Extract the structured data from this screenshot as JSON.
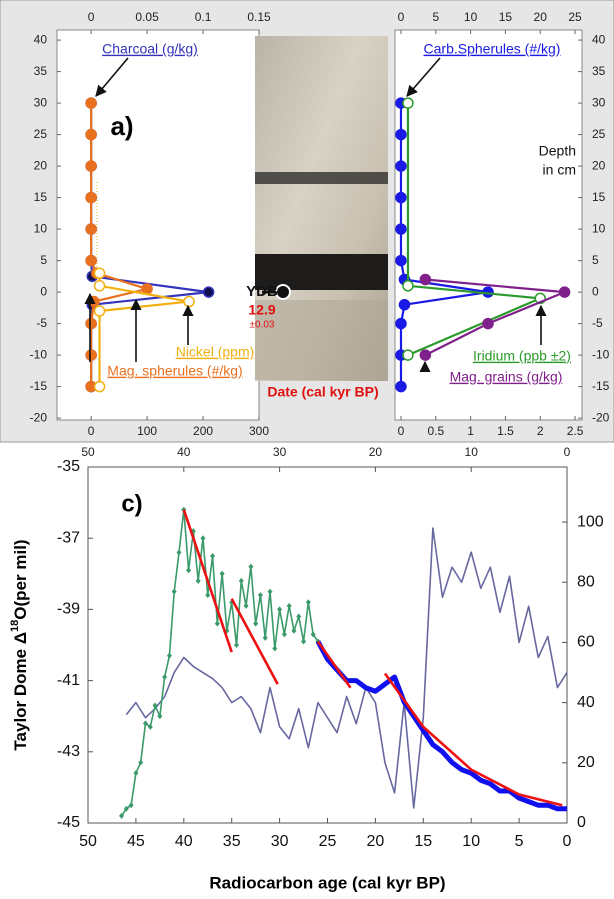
{
  "chart_data": [
    {
      "type": "profile",
      "panel_label": "a)",
      "ytick_side": "left",
      "ylim": [
        -20.3,
        41.6
      ],
      "yticks": [
        -20,
        -15,
        -10,
        -5,
        0,
        5,
        10,
        15,
        20,
        25,
        30,
        35,
        40
      ],
      "xlim": [
        -61,
        300
      ],
      "xticks": [
        0,
        100,
        200,
        300
      ],
      "x2lim": [
        -0.0305,
        0.15
      ],
      "x2ticks": [
        0,
        0.05,
        0.1,
        0.15
      ],
      "annotations": [
        "YDB",
        "12.9",
        "±0.03",
        "Date (cal kyr BP)"
      ],
      "series": [
        {
          "name": "Charcoal (g/kg)",
          "color": "#3333bb",
          "marker": "#101050",
          "axis": "x2",
          "depth": [
            30,
            25,
            20,
            15,
            10,
            5,
            2.5,
            0,
            -2,
            -5,
            -10,
            -15
          ],
          "values": [
            0,
            0,
            0,
            0,
            0,
            0,
            0.001,
            0.105,
            0.001,
            0,
            0,
            0
          ]
        },
        {
          "name": "Mag. spherules (#/kg)",
          "color": "#e8701e",
          "marker": "#e8701e",
          "axis": "x",
          "depth": [
            30,
            25,
            20,
            15,
            10,
            5,
            3,
            0.5,
            -1.5,
            -5,
            -10,
            -15
          ],
          "values": [
            0,
            0,
            0,
            0,
            0,
            0,
            10,
            100,
            5,
            0,
            0,
            0
          ]
        },
        {
          "name": "Nickel (ppm)",
          "color": "#f2b010",
          "marker": "#ffffff",
          "axis": "x",
          "depth": [
            3,
            1,
            -1.5,
            -3,
            -15
          ],
          "values": [
            15,
            15,
            175,
            15,
            15
          ]
        }
      ]
    },
    {
      "type": "profile",
      "ytick_side": "right",
      "ylim": [
        -20.3,
        41.6
      ],
      "yticks": [
        -20,
        -15,
        -10,
        -5,
        0,
        5,
        10,
        15,
        20,
        25,
        30,
        35,
        40
      ],
      "xlim": [
        -0.086,
        2.6
      ],
      "xticks": [
        0,
        0.5,
        1,
        1.5,
        2,
        2.5
      ],
      "x2lim": [
        -0.86,
        26
      ],
      "x2ticks": [
        0,
        5,
        10,
        15,
        20,
        25
      ],
      "annotations": [
        "Depth",
        "in cm"
      ],
      "series": [
        {
          "name": "Carb.Spherules (#/kg)",
          "color": "#1a1ae6",
          "marker": "#1a1ae6",
          "axis": "x2",
          "depth": [
            30,
            25,
            20,
            15,
            10,
            5,
            2,
            0,
            -2,
            -5,
            -10,
            -15
          ],
          "values": [
            0,
            0,
            0,
            0,
            0,
            0,
            0.5,
            12.5,
            0.5,
            0,
            0,
            0
          ]
        },
        {
          "name": "Iridium (ppb ±2)",
          "color": "#2a9a2a",
          "marker": "#ffffff",
          "axis": "x",
          "depth": [
            30,
            1,
            -1,
            -10
          ],
          "values": [
            0.1,
            0.1,
            2.0,
            0.1
          ]
        },
        {
          "name": "Mag. grains (g/kg)",
          "color": "#80208a",
          "marker": "#80208a",
          "axis": "x",
          "depth": [
            2,
            0,
            -5,
            -10
          ],
          "values": [
            0.35,
            2.35,
            1.25,
            0.35
          ]
        }
      ]
    },
    {
      "type": "line",
      "panel_label": "c)",
      "xlabel": "Radiocarbon age (cal kyr BP)",
      "ylabel_parts": [
        "Taylor Dome Δ",
        "18",
        "O(per mil)"
      ],
      "xlim": [
        50,
        0
      ],
      "xticks": [
        50,
        45,
        40,
        35,
        30,
        25,
        20,
        15,
        10,
        5,
        0
      ],
      "x2ticks": [
        50,
        40,
        30,
        20,
        10,
        0
      ],
      "ylim": [
        -45,
        -35
      ],
      "yticks": [
        -45,
        -43,
        -41,
        -39,
        -37,
        -35
      ],
      "y2lim": [
        0,
        118.3
      ],
      "y2ticks": [
        0,
        20,
        40,
        60,
        80,
        100
      ],
      "series": [
        {
          "color": "#6868a0",
          "axis": "y2",
          "width": 1.6,
          "x": [
            46,
            45,
            44,
            43,
            42,
            41,
            40,
            39,
            38,
            37,
            36,
            35,
            34,
            33,
            32,
            31,
            30,
            29,
            28,
            27,
            26,
            25,
            24,
            23,
            22,
            21,
            20,
            19,
            18,
            17,
            16,
            15,
            14,
            13,
            12,
            11,
            10,
            9,
            8,
            7,
            6,
            5,
            4,
            3,
            2,
            1,
            0
          ],
          "values": [
            36,
            40,
            35,
            38,
            42,
            50,
            55,
            52,
            50,
            48,
            45,
            40,
            42,
            38,
            30,
            45,
            32,
            28,
            38,
            25,
            40,
            35,
            30,
            42,
            33,
            45,
            40,
            20,
            10,
            40,
            5,
            35,
            98,
            75,
            85,
            80,
            90,
            78,
            85,
            70,
            82,
            60,
            72,
            55,
            62,
            45,
            50
          ]
        },
        {
          "color": "#3a9a6a",
          "axis": "y",
          "width": 1.6,
          "marker": "diamond",
          "x": [
            46.5,
            46,
            45.5,
            45,
            44.5,
            44,
            43.5,
            43,
            42.5,
            42,
            41.5,
            41,
            40.5,
            40,
            39.5,
            39,
            38.5,
            38,
            37.5,
            37,
            36.5,
            36,
            35.5,
            35,
            34.5,
            34,
            33.5,
            33,
            32.5,
            32,
            31.5,
            31,
            30.5,
            30,
            29.5,
            29,
            28.5,
            28,
            27.5,
            27,
            26.5,
            26
          ],
          "values": [
            -44.8,
            -44.6,
            -44.5,
            -43.6,
            -43.3,
            -42.2,
            -42.3,
            -41.7,
            -42.0,
            -40.9,
            -40.3,
            -38.5,
            -37.4,
            -36.2,
            -37.9,
            -36.8,
            -38.2,
            -37.0,
            -38.6,
            -37.5,
            -39.4,
            -38.0,
            -39.6,
            -38.8,
            -40.0,
            -38.2,
            -38.9,
            -37.8,
            -39.4,
            -38.6,
            -39.8,
            -38.5,
            -40.1,
            -39.0,
            -39.7,
            -38.9,
            -39.6,
            -39.2,
            -39.9,
            -38.8,
            -39.7,
            -39.9
          ]
        },
        {
          "color": "#1010ee",
          "axis": "y",
          "width": 5,
          "x": [
            26,
            25,
            24,
            23,
            22,
            21,
            20,
            19,
            18,
            17,
            16,
            15,
            14,
            13,
            12,
            11,
            10,
            9,
            8,
            7,
            6,
            5,
            4,
            3,
            2,
            1,
            0
          ],
          "values": [
            -39.9,
            -40.4,
            -40.7,
            -41.0,
            -41.0,
            -41.2,
            -41.3,
            -41.1,
            -40.9,
            -41.6,
            -42.0,
            -42.4,
            -42.8,
            -43.0,
            -43.3,
            -43.5,
            -43.6,
            -43.8,
            -43.9,
            -44.1,
            -44.1,
            -44.3,
            -44.4,
            -44.5,
            -44.5,
            -44.6,
            -44.6
          ]
        },
        {
          "color": "#ee1111",
          "axis": "y",
          "width": 2.6,
          "x": [
            40,
            35
          ],
          "values": [
            -36.2,
            -40.2
          ]
        },
        {
          "color": "#ee1111",
          "axis": "y",
          "width": 2.6,
          "x": [
            35,
            30.2
          ],
          "values": [
            -38.7,
            -41.1
          ]
        },
        {
          "color": "#ee1111",
          "axis": "y",
          "width": 2.6,
          "x": [
            26,
            22.6
          ],
          "values": [
            -39.9,
            -41.2
          ]
        },
        {
          "color": "#ee1111",
          "axis": "y",
          "width": 2.6,
          "x": [
            19,
            15,
            10,
            5,
            0.5
          ],
          "values": [
            -40.8,
            -42.3,
            -43.5,
            -44.2,
            -44.5
          ]
        }
      ]
    }
  ]
}
